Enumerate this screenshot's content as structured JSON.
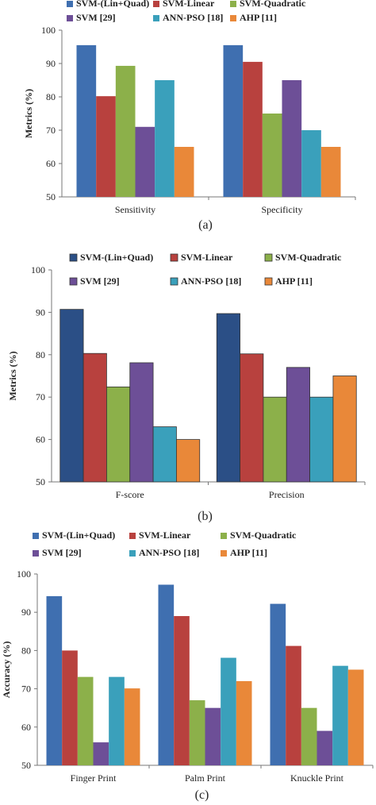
{
  "colors": {
    "svm_lin_quad": "#3f6fb0",
    "svm_linear": "#b8413e",
    "svm_quadratic": "#8cb04a",
    "svm29": "#6d4f97",
    "ann_pso": "#3aa0bb",
    "ahp": "#e98839",
    "svm_lin_quad_b": "#2b4f86"
  },
  "chart_data": [
    {
      "type": "bar",
      "caption": "(a)",
      "ylabel": "Metrics (%)",
      "ylim": [
        50,
        100
      ],
      "yticks": [
        "50",
        "60",
        "70",
        "80",
        "90",
        "100"
      ],
      "grid": false,
      "legend_position": "top",
      "categories": [
        "Sensitivity",
        "Specificity"
      ],
      "series": [
        {
          "name": "SVM-(Lin+Quad)",
          "values": [
            95.5,
            95.5
          ]
        },
        {
          "name": "SVM-Linear",
          "values": [
            80.2,
            90.5
          ]
        },
        {
          "name": "SVM-Quadratic",
          "values": [
            89.3,
            75
          ]
        },
        {
          "name": "SVM [29]",
          "values": [
            71,
            85
          ]
        },
        {
          "name": "ANN-PSO [18]",
          "values": [
            85,
            70
          ]
        },
        {
          "name": "AHP [11]",
          "values": [
            65,
            65
          ]
        }
      ]
    },
    {
      "type": "bar",
      "caption": "(b)",
      "ylabel": "Metrics (%)",
      "ylim": [
        50,
        100
      ],
      "yticks": [
        "50",
        "60",
        "70",
        "80",
        "90",
        "100"
      ],
      "grid": false,
      "legend_position": "top",
      "categories": [
        "F-score",
        "Precision"
      ],
      "series": [
        {
          "name": "SVM-(Lin+Quad)",
          "values": [
            90.7,
            89.7
          ]
        },
        {
          "name": "SVM-Linear",
          "values": [
            80.3,
            80.2
          ]
        },
        {
          "name": "SVM-Quadratic",
          "values": [
            72.4,
            70
          ]
        },
        {
          "name": "SVM [29]",
          "values": [
            78.1,
            77
          ]
        },
        {
          "name": "ANN-PSO [18]",
          "values": [
            63,
            70
          ]
        },
        {
          "name": "AHP [11]",
          "values": [
            60,
            75
          ]
        }
      ]
    },
    {
      "type": "bar",
      "caption": "(c)",
      "ylabel": "Accuracy (%)",
      "ylim": [
        50,
        100
      ],
      "yticks": [
        "50",
        "60",
        "70",
        "80",
        "90",
        "100"
      ],
      "grid": false,
      "legend_position": "top",
      "categories": [
        "Finger Print",
        "Palm Print",
        "Knuckle Print"
      ],
      "series": [
        {
          "name": "SVM-(Lin+Quad)",
          "values": [
            94.2,
            97.2,
            92.2
          ]
        },
        {
          "name": "SVM-Linear",
          "values": [
            80,
            89,
            81.2
          ]
        },
        {
          "name": "SVM-Quadratic",
          "values": [
            73.1,
            67,
            65
          ]
        },
        {
          "name": "SVM [29]",
          "values": [
            56,
            65,
            59
          ]
        },
        {
          "name": "ANN-PSO [18]",
          "values": [
            73.1,
            78.1,
            76
          ]
        },
        {
          "name": "AHP [11]",
          "values": [
            70.1,
            72,
            75
          ]
        }
      ]
    }
  ]
}
